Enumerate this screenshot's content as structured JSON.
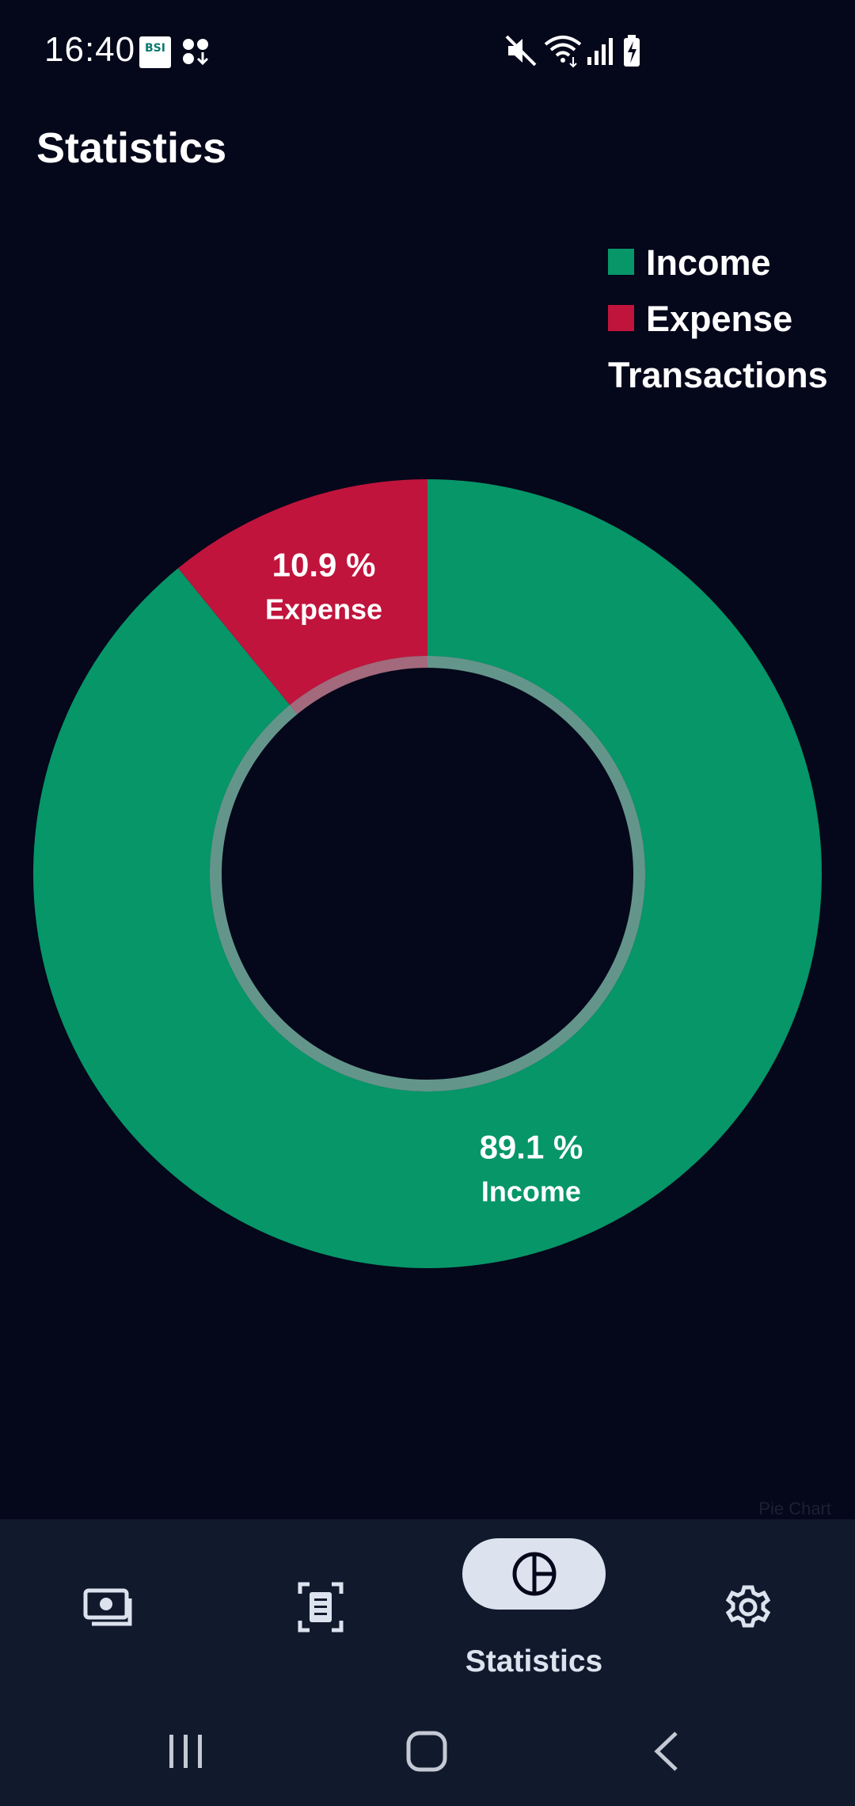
{
  "status_bar": {
    "time": "16:40",
    "notification_badge": "BSI"
  },
  "header": {
    "title": "Statistics"
  },
  "legend": {
    "items": [
      {
        "label": "Income",
        "color": "#069668"
      },
      {
        "label": "Expense",
        "color": "#c0143c"
      }
    ],
    "caption": "Transactions"
  },
  "chart_data": {
    "type": "pie",
    "categories": [
      "Income",
      "Expense"
    ],
    "values": [
      89.1,
      10.9
    ],
    "colors": [
      "#069668",
      "#c0143c"
    ],
    "data_labels": [
      "89.1 %",
      "10.9 %"
    ],
    "legend_title": "Transactions",
    "legend_position": "top-right"
  },
  "watermark": "Pie Chart",
  "bottom_nav": {
    "items": [
      {
        "icon": "money-icon",
        "label": ""
      },
      {
        "icon": "receipt-scan-icon",
        "label": ""
      },
      {
        "icon": "pie-chart-icon",
        "label": "Statistics",
        "active": true
      },
      {
        "icon": "gear-icon",
        "label": ""
      }
    ]
  }
}
